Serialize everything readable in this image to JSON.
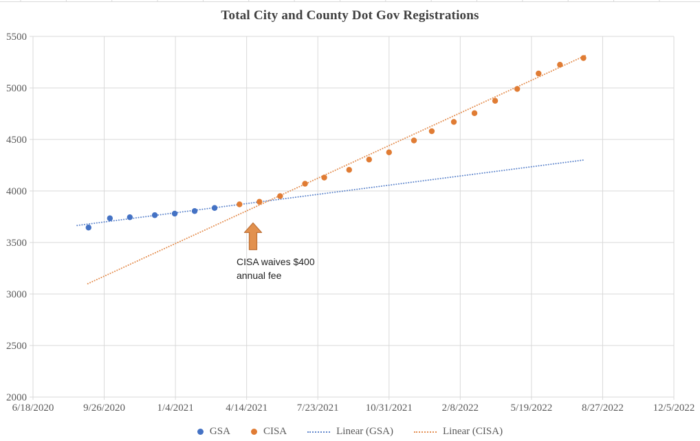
{
  "chart_data": {
    "type": "scatter",
    "title": "Total City and County Dot Gov Registrations",
    "title_color": "#404040",
    "text_color": "#595959",
    "grid_color": "#D9D9D9",
    "background": "#FFFFFF",
    "x_axis": {
      "kind": "date",
      "tick_labels": [
        "6/18/2020",
        "9/26/2020",
        "1/4/2021",
        "4/14/2021",
        "7/23/2021",
        "10/31/2021",
        "2/8/2022",
        "5/19/2022",
        "8/27/2022",
        "12/5/2022"
      ],
      "tick_interval_days": 100,
      "range_days": [
        0,
        900
      ],
      "gridlines": true
    },
    "y_axis": {
      "min": 2000,
      "max": 5500,
      "tick_step": 500,
      "tick_labels": [
        "2000",
        "2500",
        "3000",
        "3500",
        "4000",
        "4500",
        "5000",
        "5500"
      ],
      "gridlines": true
    },
    "series": [
      {
        "name": "GSA",
        "color": "#4472C4",
        "marker": "circle",
        "points_day_value": [
          [
            78,
            3645
          ],
          [
            108,
            3735
          ],
          [
            136,
            3745
          ],
          [
            171,
            3765
          ],
          [
            199,
            3780
          ],
          [
            227,
            3805
          ],
          [
            255,
            3835
          ]
        ]
      },
      {
        "name": "CISA",
        "color": "#E07C34",
        "marker": "circle",
        "points_day_value": [
          [
            290,
            3870
          ],
          [
            318,
            3895
          ],
          [
            347,
            3950
          ],
          [
            382,
            4070
          ],
          [
            409,
            4130
          ],
          [
            444,
            4205
          ],
          [
            472,
            4305
          ],
          [
            500,
            4375
          ],
          [
            535,
            4490
          ],
          [
            560,
            4580
          ],
          [
            591,
            4670
          ],
          [
            620,
            4755
          ],
          [
            649,
            4875
          ],
          [
            680,
            4990
          ],
          [
            710,
            5140
          ],
          [
            740,
            5225
          ],
          [
            773,
            5290
          ]
        ]
      }
    ],
    "trendlines": [
      {
        "name": "Linear (GSA)",
        "color": "#4472C4",
        "start_day_value": [
          62,
          3665
        ],
        "end_day_value": [
          773,
          4300
        ]
      },
      {
        "name": "Linear (CISA)",
        "color": "#E07C34",
        "start_day_value": [
          77,
          3100
        ],
        "end_day_value": [
          776,
          5315
        ]
      }
    ],
    "annotation": {
      "line1": "CISA waives $400",
      "line2": "annual fee",
      "arrow_day": 309,
      "arrow_tip_value": 3690,
      "arrow_base_value": 3430,
      "arrow_fill": "#E2914E",
      "arrow_stroke": "#BE7137"
    },
    "legend": {
      "position": "bottom"
    }
  }
}
